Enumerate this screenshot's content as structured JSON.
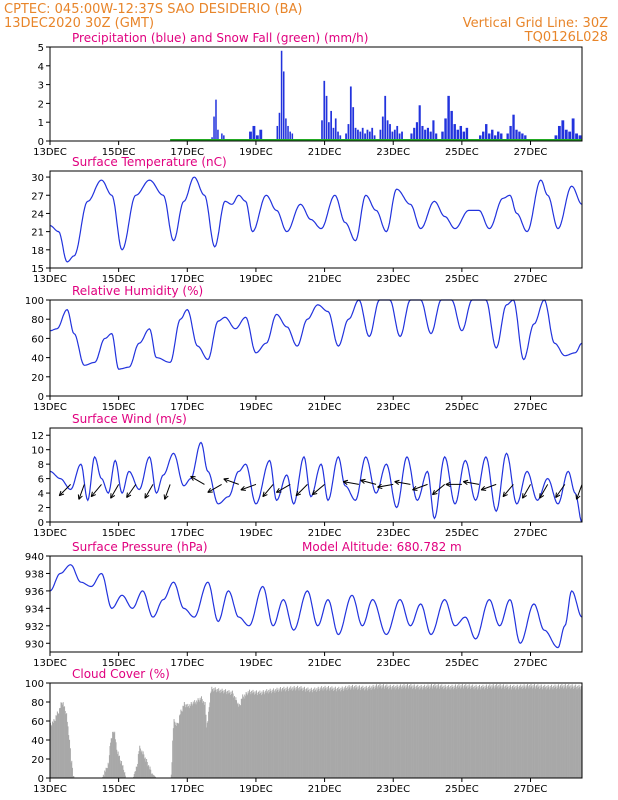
{
  "header": {
    "line1": "CPTEC:  045:00W-12:37S  SAO DESIDERIO (BA)",
    "line2": "13DEC2020 30Z (GMT)",
    "grid": "Vertical Grid Line: 30Z",
    "code": "TQ0126L028"
  },
  "colors": {
    "series": "#2233dd",
    "snow": "#22aa22",
    "cloud": "#a8a8a8",
    "title": "#e0007f",
    "header": "#e8852a"
  },
  "x_axis": {
    "tick_labels": [
      "13DEC",
      "15DEC",
      "17DEC",
      "19DEC",
      "21DEC",
      "23DEC",
      "25DEC",
      "27DEC"
    ],
    "tick_days": [
      0,
      2,
      4,
      6,
      8,
      10,
      12,
      14
    ],
    "range_days": [
      0,
      15.5
    ]
  },
  "chart_data": [
    {
      "type": "bar",
      "title": "Precipitation (blue) and Snow Fall (green) (mm/h)",
      "ylim": [
        0,
        5
      ],
      "yticks": [
        0,
        1,
        2,
        3,
        4,
        5
      ],
      "precip_segments": [
        {
          "start": 4.7,
          "end": 5.1,
          "values": [
            0.2,
            1.3,
            2.2,
            0.6,
            0.1,
            0.4,
            0.3
          ]
        },
        {
          "start": 5.8,
          "end": 6.2,
          "values": [
            0.5,
            0.8,
            0.3,
            0.6
          ]
        },
        {
          "start": 6.6,
          "end": 7.1,
          "values": [
            0.8,
            1.5,
            4.8,
            3.7,
            1.2,
            0.8,
            0.5,
            0.4
          ]
        },
        {
          "start": 7.9,
          "end": 8.5,
          "values": [
            1.1,
            3.2,
            2.4,
            1.0,
            1.6,
            0.7,
            1.2,
            0.5,
            0.3
          ]
        },
        {
          "start": 8.6,
          "end": 9.5,
          "values": [
            0.4,
            0.9,
            2.9,
            1.8,
            0.7,
            0.6,
            0.5,
            0.7,
            0.4,
            0.6,
            0.5,
            0.7,
            0.3
          ]
        },
        {
          "start": 9.6,
          "end": 10.3,
          "values": [
            0.6,
            1.3,
            2.4,
            1.1,
            0.9,
            0.5,
            0.6,
            0.8,
            0.4,
            0.5
          ]
        },
        {
          "start": 10.5,
          "end": 11.3,
          "values": [
            0.4,
            0.7,
            1.0,
            1.9,
            0.8,
            0.6,
            0.7,
            0.5,
            1.1,
            0.4
          ]
        },
        {
          "start": 11.4,
          "end": 12.2,
          "values": [
            0.5,
            1.2,
            2.4,
            1.6,
            0.9,
            0.6,
            0.8,
            0.5,
            0.7
          ]
        },
        {
          "start": 12.5,
          "end": 13.2,
          "values": [
            0.3,
            0.5,
            0.9,
            0.4,
            0.6,
            0.3,
            0.5,
            0.4
          ]
        },
        {
          "start": 13.3,
          "end": 13.9,
          "values": [
            0.4,
            0.8,
            1.4,
            0.6,
            0.5,
            0.4,
            0.3
          ]
        },
        {
          "start": 14.7,
          "end": 15.5,
          "values": [
            0.3,
            0.8,
            1.1,
            0.6,
            0.5,
            1.2,
            0.4,
            0.3
          ]
        }
      ],
      "snow": 0
    },
    {
      "type": "line",
      "title": "Surface Temperature (nC)",
      "ylim": [
        15,
        31
      ],
      "yticks": [
        15,
        18,
        21,
        24,
        27,
        30
      ],
      "extrema": [
        [
          0,
          22
        ],
        [
          0.25,
          21
        ],
        [
          0.5,
          16
        ],
        [
          0.7,
          17
        ],
        [
          1.1,
          26
        ],
        [
          1.5,
          29.5
        ],
        [
          1.8,
          27
        ],
        [
          2.1,
          18
        ],
        [
          2.5,
          27
        ],
        [
          2.9,
          29.5
        ],
        [
          3.3,
          27
        ],
        [
          3.6,
          19.5
        ],
        [
          3.9,
          26
        ],
        [
          4.2,
          30
        ],
        [
          4.5,
          27
        ],
        [
          4.8,
          18.5
        ],
        [
          5.1,
          26
        ],
        [
          5.3,
          25.5
        ],
        [
          5.5,
          27
        ],
        [
          5.7,
          26
        ],
        [
          5.9,
          21
        ],
        [
          6.3,
          27
        ],
        [
          6.6,
          24.5
        ],
        [
          6.9,
          21
        ],
        [
          7.3,
          25.5
        ],
        [
          7.6,
          23
        ],
        [
          7.9,
          21.5
        ],
        [
          8.3,
          27
        ],
        [
          8.6,
          22.5
        ],
        [
          8.9,
          19.5
        ],
        [
          9.2,
          27
        ],
        [
          9.5,
          24.5
        ],
        [
          9.8,
          21
        ],
        [
          10.1,
          28
        ],
        [
          10.5,
          25.5
        ],
        [
          10.8,
          21.5
        ],
        [
          11.2,
          26
        ],
        [
          11.5,
          23.5
        ],
        [
          11.8,
          21.5
        ],
        [
          12.2,
          24.5
        ],
        [
          12.5,
          24.5
        ],
        [
          12.8,
          21.5
        ],
        [
          13.2,
          26.5
        ],
        [
          13.4,
          27
        ],
        [
          13.6,
          24
        ],
        [
          13.9,
          21
        ],
        [
          14.3,
          29.5
        ],
        [
          14.5,
          27
        ],
        [
          14.8,
          21.5
        ],
        [
          15.2,
          28.5
        ],
        [
          15.5,
          25.5
        ]
      ]
    },
    {
      "type": "line",
      "title": "Relative Humidity (%)",
      "ylim": [
        0,
        100
      ],
      "yticks": [
        0,
        20,
        40,
        60,
        80,
        100
      ],
      "extrema": [
        [
          0,
          68
        ],
        [
          0.2,
          70
        ],
        [
          0.5,
          90
        ],
        [
          0.7,
          65
        ],
        [
          1.0,
          32
        ],
        [
          1.3,
          35
        ],
        [
          1.6,
          60
        ],
        [
          1.8,
          65
        ],
        [
          2.0,
          28
        ],
        [
          2.3,
          30
        ],
        [
          2.6,
          55
        ],
        [
          2.9,
          70
        ],
        [
          3.1,
          40
        ],
        [
          3.5,
          35
        ],
        [
          3.8,
          80
        ],
        [
          4.0,
          90
        ],
        [
          4.3,
          52
        ],
        [
          4.6,
          38
        ],
        [
          4.9,
          78
        ],
        [
          5.1,
          82
        ],
        [
          5.4,
          70
        ],
        [
          5.7,
          82
        ],
        [
          6.0,
          45
        ],
        [
          6.3,
          55
        ],
        [
          6.6,
          85
        ],
        [
          6.9,
          72
        ],
        [
          7.2,
          52
        ],
        [
          7.5,
          80
        ],
        [
          7.8,
          95
        ],
        [
          8.1,
          88
        ],
        [
          8.4,
          52
        ],
        [
          8.7,
          80
        ],
        [
          9.0,
          100
        ],
        [
          9.3,
          62
        ],
        [
          9.6,
          100
        ],
        [
          9.9,
          100
        ],
        [
          10.2,
          62
        ],
        [
          10.5,
          100
        ],
        [
          10.8,
          100
        ],
        [
          11.1,
          65
        ],
        [
          11.4,
          100
        ],
        [
          11.7,
          100
        ],
        [
          12.0,
          68
        ],
        [
          12.3,
          100
        ],
        [
          12.7,
          100
        ],
        [
          13.0,
          50
        ],
        [
          13.3,
          95
        ],
        [
          13.5,
          100
        ],
        [
          13.8,
          38
        ],
        [
          14.1,
          75
        ],
        [
          14.4,
          100
        ],
        [
          14.7,
          55
        ],
        [
          15.0,
          42
        ],
        [
          15.3,
          45
        ],
        [
          15.5,
          55
        ]
      ]
    },
    {
      "type": "line",
      "title": "Surface Wind (m/s)",
      "ylim": [
        0,
        13
      ],
      "yticks": [
        0,
        2,
        4,
        6,
        8,
        10,
        12
      ],
      "extrema": [
        [
          0,
          7
        ],
        [
          0.3,
          6
        ],
        [
          0.6,
          4.5
        ],
        [
          0.9,
          8
        ],
        [
          1.1,
          3
        ],
        [
          1.3,
          9
        ],
        [
          1.5,
          6
        ],
        [
          1.7,
          4
        ],
        [
          1.9,
          8.5
        ],
        [
          2.1,
          4
        ],
        [
          2.3,
          7
        ],
        [
          2.6,
          4.5
        ],
        [
          2.9,
          9
        ],
        [
          3.1,
          4
        ],
        [
          3.3,
          6.5
        ],
        [
          3.6,
          9.5
        ],
        [
          3.9,
          5
        ],
        [
          4.1,
          6
        ],
        [
          4.4,
          11
        ],
        [
          4.6,
          7
        ],
        [
          4.9,
          2.5
        ],
        [
          5.2,
          3.5
        ],
        [
          5.5,
          7
        ],
        [
          5.7,
          8
        ],
        [
          6.0,
          2.5
        ],
        [
          6.4,
          8.5
        ],
        [
          6.6,
          3
        ],
        [
          6.9,
          6.5
        ],
        [
          7.1,
          2.5
        ],
        [
          7.4,
          9
        ],
        [
          7.6,
          3.5
        ],
        [
          7.9,
          8
        ],
        [
          8.1,
          3
        ],
        [
          8.4,
          9
        ],
        [
          8.6,
          5
        ],
        [
          8.9,
          3
        ],
        [
          9.2,
          9
        ],
        [
          9.5,
          4
        ],
        [
          9.8,
          8
        ],
        [
          10.1,
          2
        ],
        [
          10.4,
          9
        ],
        [
          10.7,
          3
        ],
        [
          11.0,
          7
        ],
        [
          11.2,
          0.5
        ],
        [
          11.5,
          9
        ],
        [
          11.8,
          2.5
        ],
        [
          12.1,
          8.5
        ],
        [
          12.4,
          3
        ],
        [
          12.7,
          9
        ],
        [
          13.0,
          1.5
        ],
        [
          13.3,
          9.5
        ],
        [
          13.6,
          2.5
        ],
        [
          13.9,
          7
        ],
        [
          14.2,
          3
        ],
        [
          14.5,
          6
        ],
        [
          14.8,
          2.5
        ],
        [
          15.1,
          7
        ],
        [
          15.3,
          4
        ],
        [
          15.5,
          0
        ]
      ]
    },
    {
      "type": "line",
      "title": "Surface Pressure (hPa)",
      "subtitle": "Model Altitude: 680.782 m",
      "ylim": [
        929,
        940
      ],
      "yticks": [
        930,
        932,
        934,
        936,
        938,
        940
      ],
      "extrema": [
        [
          0,
          936
        ],
        [
          0.3,
          938
        ],
        [
          0.6,
          939
        ],
        [
          0.9,
          937
        ],
        [
          1.2,
          936.5
        ],
        [
          1.5,
          938
        ],
        [
          1.8,
          934
        ],
        [
          2.1,
          935.5
        ],
        [
          2.4,
          934
        ],
        [
          2.7,
          936
        ],
        [
          3.0,
          933
        ],
        [
          3.3,
          935
        ],
        [
          3.6,
          937
        ],
        [
          3.9,
          934
        ],
        [
          4.2,
          933
        ],
        [
          4.6,
          937
        ],
        [
          4.9,
          932.5
        ],
        [
          5.2,
          936
        ],
        [
          5.5,
          933
        ],
        [
          5.8,
          932
        ],
        [
          6.2,
          936.5
        ],
        [
          6.5,
          932
        ],
        [
          6.8,
          935
        ],
        [
          7.1,
          931.5
        ],
        [
          7.5,
          936
        ],
        [
          7.8,
          932
        ],
        [
          8.1,
          935
        ],
        [
          8.4,
          931
        ],
        [
          8.8,
          935.5
        ],
        [
          9.1,
          932
        ],
        [
          9.4,
          935
        ],
        [
          9.8,
          931
        ],
        [
          10.2,
          935
        ],
        [
          10.5,
          932
        ],
        [
          10.8,
          934.5
        ],
        [
          11.1,
          931
        ],
        [
          11.5,
          935
        ],
        [
          11.8,
          932
        ],
        [
          12.1,
          933
        ],
        [
          12.4,
          930.5
        ],
        [
          12.8,
          935
        ],
        [
          13.1,
          932
        ],
        [
          13.4,
          935
        ],
        [
          13.7,
          930
        ],
        [
          14.1,
          934.5
        ],
        [
          14.4,
          931.5
        ],
        [
          14.8,
          929.5
        ],
        [
          15.0,
          932
        ],
        [
          15.2,
          936
        ],
        [
          15.5,
          933
        ]
      ]
    },
    {
      "type": "bar",
      "title": "Cloud Cover (%)",
      "ylim": [
        0,
        100
      ],
      "yticks": [
        0,
        20,
        40,
        60,
        80,
        100
      ],
      "profile": [
        [
          0,
          58
        ],
        [
          0.1,
          62
        ],
        [
          0.2,
          70
        ],
        [
          0.35,
          82
        ],
        [
          0.45,
          72
        ],
        [
          0.55,
          45
        ],
        [
          0.6,
          20
        ],
        [
          0.7,
          0
        ],
        [
          1.5,
          0
        ],
        [
          1.6,
          10
        ],
        [
          1.7,
          18
        ],
        [
          1.75,
          42
        ],
        [
          1.85,
          52
        ],
        [
          1.95,
          30
        ],
        [
          2.05,
          20
        ],
        [
          2.15,
          10
        ],
        [
          2.2,
          0
        ],
        [
          2.4,
          0
        ],
        [
          2.5,
          12
        ],
        [
          2.6,
          34
        ],
        [
          2.7,
          28
        ],
        [
          2.8,
          20
        ],
        [
          2.9,
          12
        ],
        [
          3.0,
          3
        ],
        [
          3.1,
          0
        ],
        [
          3.5,
          0
        ],
        [
          3.6,
          62
        ],
        [
          3.7,
          58
        ],
        [
          3.8,
          72
        ],
        [
          3.9,
          80
        ],
        [
          4.0,
          78
        ],
        [
          4.2,
          82
        ],
        [
          4.4,
          86
        ],
        [
          4.5,
          80
        ],
        [
          4.55,
          58
        ],
        [
          4.7,
          96
        ],
        [
          5.0,
          94
        ],
        [
          5.3,
          92
        ],
        [
          5.4,
          85
        ],
        [
          5.5,
          78
        ],
        [
          5.6,
          88
        ],
        [
          5.8,
          93
        ],
        [
          6.1,
          92
        ],
        [
          6.4,
          94
        ],
        [
          6.8,
          96
        ],
        [
          7.2,
          97
        ],
        [
          7.6,
          95
        ],
        [
          8.0,
          97
        ],
        [
          8.4,
          96
        ],
        [
          8.8,
          98
        ],
        [
          9.2,
          97
        ],
        [
          9.6,
          99
        ],
        [
          10.0,
          98
        ],
        [
          10.4,
          99
        ],
        [
          10.8,
          98
        ],
        [
          11.2,
          99
        ],
        [
          11.6,
          98
        ],
        [
          12.0,
          99
        ],
        [
          12.5,
          98
        ],
        [
          13.0,
          99
        ],
        [
          13.5,
          98
        ],
        [
          14.0,
          99
        ],
        [
          14.5,
          98
        ],
        [
          15.0,
          99
        ],
        [
          15.5,
          98
        ]
      ]
    }
  ],
  "wind_arrows": [
    [
      0.6,
      225
    ],
    [
      1.0,
      250
    ],
    [
      1.5,
      230
    ],
    [
      2.0,
      240
    ],
    [
      2.5,
      235
    ],
    [
      3.0,
      240
    ],
    [
      3.5,
      250
    ],
    [
      4.5,
      150
    ],
    [
      5.0,
      210
    ],
    [
      5.5,
      160
    ],
    [
      6.0,
      200
    ],
    [
      6.5,
      230
    ],
    [
      7.0,
      210
    ],
    [
      7.5,
      225
    ],
    [
      8.0,
      220
    ],
    [
      9.0,
      170
    ],
    [
      9.5,
      165
    ],
    [
      10.0,
      190
    ],
    [
      10.5,
      170
    ],
    [
      11.0,
      200
    ],
    [
      11.5,
      220
    ],
    [
      12.0,
      180
    ],
    [
      12.5,
      170
    ],
    [
      13.0,
      200
    ],
    [
      13.5,
      230
    ],
    [
      14.0,
      240
    ],
    [
      14.5,
      240
    ],
    [
      15.0,
      235
    ],
    [
      15.5,
      250
    ]
  ]
}
